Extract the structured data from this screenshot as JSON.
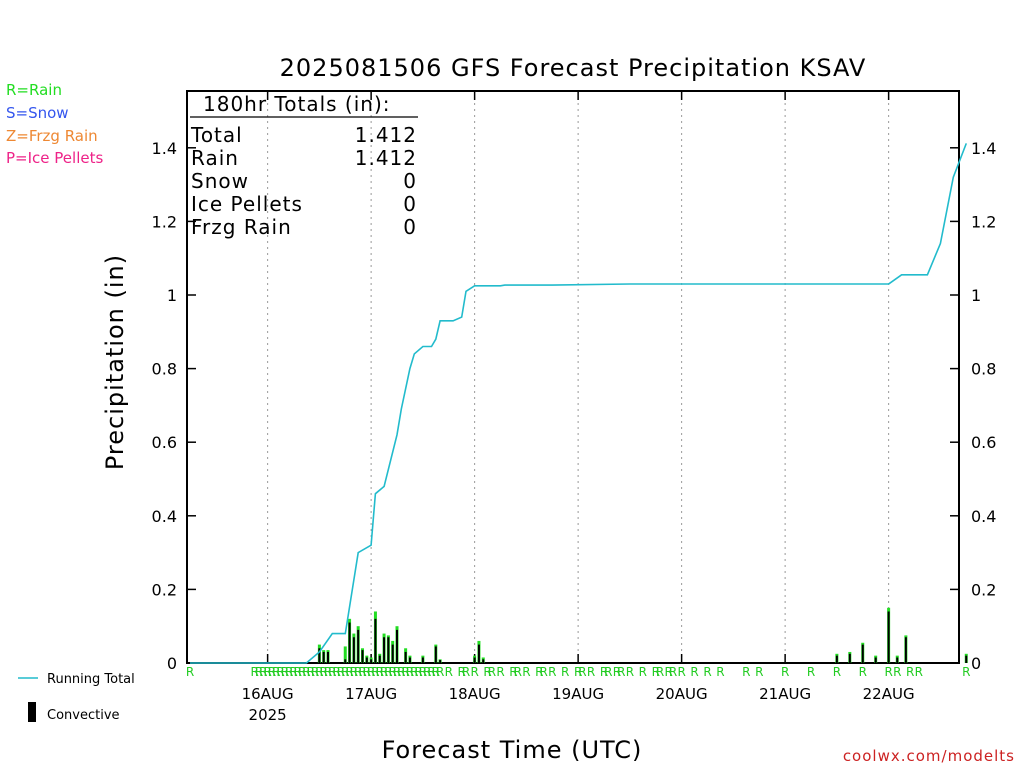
{
  "chart_data": {
    "type": "line",
    "title": "2025081506 GFS Forecast Precipitation KSAV",
    "ylabel": "Precipitation (in)",
    "xlabel": "Forecast Time (UTC)",
    "ylim": [
      0,
      1.55
    ],
    "yticks": [
      0,
      0.2,
      0.4,
      0.6,
      0.8,
      1,
      1.2,
      1.4
    ],
    "ytick_labels": [
      "0",
      "0.2",
      "0.4",
      "0.6",
      "0.8",
      "1",
      "1.2",
      "1.4"
    ],
    "x_day_labels": [
      "16AUG",
      "17AUG",
      "18AUG",
      "19AUG",
      "20AUG",
      "21AUG",
      "22AUG"
    ],
    "x_year_label": "2025",
    "grid": "vertical dotted at each day",
    "legend_types": [
      {
        "label": "R=Rain",
        "color": "#22dd22"
      },
      {
        "label": "S=Snow",
        "color": "#3355ee"
      },
      {
        "label": "Z=Frzg Rain",
        "color": "#ee8833"
      },
      {
        "label": "P=Ice Pellets",
        "color": "#ee2288"
      }
    ],
    "legend_series": [
      {
        "label": "Running Total",
        "color": "#22bbcc"
      },
      {
        "label": "Convective",
        "color": "#000000"
      }
    ],
    "totals": {
      "heading": "180hr Totals (in):",
      "rows": [
        {
          "label": "Total",
          "value": "1.412"
        },
        {
          "label": "Rain",
          "value": "1.412"
        },
        {
          "label": "Snow",
          "value": "0"
        },
        {
          "label": "Ice Pellets",
          "value": "0"
        },
        {
          "label": "Frzg Rain",
          "value": "0"
        }
      ]
    },
    "running_total": {
      "name": "Running Total",
      "hours": [
        0,
        27,
        30,
        33,
        36,
        39,
        42,
        43,
        45,
        48,
        49,
        51,
        52,
        54,
        56,
        57,
        58,
        60,
        61,
        63,
        64,
        66,
        72,
        73,
        75,
        84,
        102,
        162,
        165,
        171,
        174,
        177,
        180
      ],
      "values": [
        0,
        0,
        0.03,
        0.08,
        0.08,
        0.3,
        0.32,
        0.46,
        0.48,
        0.62,
        0.69,
        0.8,
        0.84,
        0.86,
        0.86,
        0.88,
        0.93,
        0.93,
        0.93,
        0.94,
        1.01,
        1.025,
        1.025,
        1.027,
        1.027,
        1.027,
        1.03,
        1.03,
        1.055,
        1.055,
        1.14,
        1.32,
        1.412
      ]
    },
    "bars": {
      "name": "Convective",
      "hours": [
        30,
        31,
        32,
        36,
        37,
        38,
        39,
        40,
        41,
        42,
        43,
        44,
        45,
        46,
        47,
        48,
        50,
        51,
        54,
        57,
        58,
        66,
        67,
        68,
        69,
        70,
        150,
        153,
        156,
        159,
        162,
        164,
        166,
        168,
        170,
        171,
        179,
        180
      ],
      "totals": [
        0.05,
        0.035,
        0.035,
        0.045,
        0.12,
        0.08,
        0.1,
        0.04,
        0.02,
        0.015,
        0.14,
        0.025,
        0.08,
        0.075,
        0.06,
        0.1,
        0.04,
        0.02,
        0.02,
        0.05,
        0.01,
        0.02,
        0.06,
        0.015,
        0,
        0,
        0.025,
        0.03,
        0.055,
        0.02,
        0.15,
        0.02,
        0.075,
        0,
        0,
        0,
        0,
        0.025
      ],
      "convective": [
        0.04,
        0.03,
        0.03,
        0.01,
        0.11,
        0.07,
        0.09,
        0.035,
        0.015,
        0.01,
        0.12,
        0.02,
        0.07,
        0.07,
        0.05,
        0.09,
        0.03,
        0.015,
        0.015,
        0.045,
        0.008,
        0.015,
        0.05,
        0.01,
        0,
        0,
        0.02,
        0.025,
        0.05,
        0.015,
        0.14,
        0.015,
        0.07,
        0,
        0,
        0,
        0,
        0.02
      ]
    },
    "precip_type_hours": [
      0,
      15,
      16,
      17,
      18,
      19,
      20,
      21,
      22,
      23,
      24,
      25,
      26,
      27,
      28,
      29,
      30,
      31,
      32,
      33,
      34,
      35,
      36,
      37,
      38,
      39,
      40,
      41,
      42,
      43,
      44,
      45,
      46,
      47,
      48,
      49,
      50,
      51,
      52,
      53,
      54,
      55,
      56,
      57,
      58,
      60,
      63,
      64,
      66,
      69,
      70,
      72,
      75,
      76,
      78,
      81,
      82,
      84,
      87,
      90,
      91,
      93,
      96,
      97,
      99,
      100,
      102,
      105,
      108,
      109,
      111,
      112,
      114,
      117,
      120,
      123,
      129,
      132,
      138,
      144,
      150,
      156,
      162,
      164,
      167,
      169,
      180
    ],
    "precip_type_letter": "R"
  },
  "credit": "coolwx.com/modelts"
}
